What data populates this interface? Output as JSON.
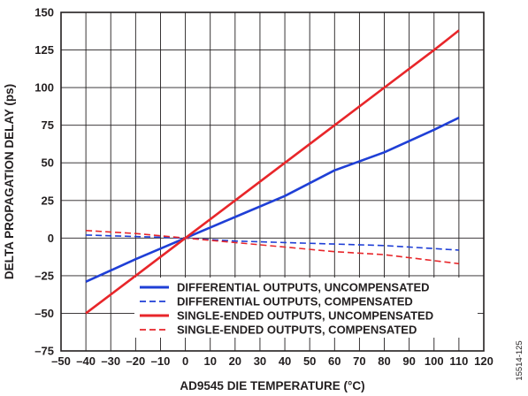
{
  "figure_id": "15514-125",
  "chart_data": {
    "type": "line",
    "xlabel": "AD9545 DIE TEMPERATURE (°C)",
    "ylabel": "DELTA PROPAGATION DELAY (ps)",
    "xlim": [
      -50,
      120
    ],
    "ylim": [
      -75,
      150
    ],
    "x_ticks": [
      -50,
      -40,
      -30,
      -20,
      -10,
      0,
      10,
      20,
      30,
      40,
      50,
      60,
      70,
      80,
      90,
      100,
      110,
      120
    ],
    "x_tick_labels": [
      "–50",
      "–40",
      "–30",
      "–20",
      "–10",
      "0",
      "10",
      "20",
      "30",
      "40",
      "50",
      "60",
      "70",
      "80",
      "90",
      "100",
      "110",
      "120"
    ],
    "y_ticks": [
      -75,
      -50,
      -25,
      0,
      25,
      50,
      75,
      100,
      125,
      150
    ],
    "y_tick_labels": [
      "–75",
      "–50",
      "–25",
      "0",
      "25",
      "50",
      "75",
      "100",
      "125",
      "150"
    ],
    "grid": true,
    "legend_position": "bottom-right",
    "series": [
      {
        "name": "DIFFERENTIAL OUTPUTS, UNCOMPENSATED",
        "color": "#1f3fd6",
        "style": "solid",
        "x": [
          -40,
          -20,
          0,
          20,
          40,
          60,
          80,
          100,
          110
        ],
        "y": [
          -29,
          -14,
          0,
          14,
          28,
          45,
          57,
          72,
          80
        ]
      },
      {
        "name": "DIFFERENTIAL OUTPUTS, COMPENSATED",
        "color": "#1f3fd6",
        "style": "dashed",
        "x": [
          -40,
          -20,
          0,
          20,
          40,
          60,
          80,
          100,
          110
        ],
        "y": [
          2,
          1,
          0,
          -2,
          -3,
          -4,
          -5,
          -7,
          -8
        ]
      },
      {
        "name": "SINGLE-ENDED OUTPUTS, UNCOMPENSATED",
        "color": "#e8262a",
        "style": "solid",
        "x": [
          -40,
          -20,
          0,
          20,
          40,
          60,
          80,
          100,
          110
        ],
        "y": [
          -50,
          -25,
          0,
          25,
          50,
          75,
          100,
          125,
          138
        ]
      },
      {
        "name": "SINGLE-ENDED OUTPUTS, COMPENSATED",
        "color": "#e8262a",
        "style": "dashed",
        "x": [
          -40,
          -20,
          0,
          20,
          40,
          60,
          80,
          100,
          110
        ],
        "y": [
          5,
          3,
          0,
          -3,
          -6,
          -9,
          -11,
          -15,
          -17
        ]
      }
    ]
  }
}
